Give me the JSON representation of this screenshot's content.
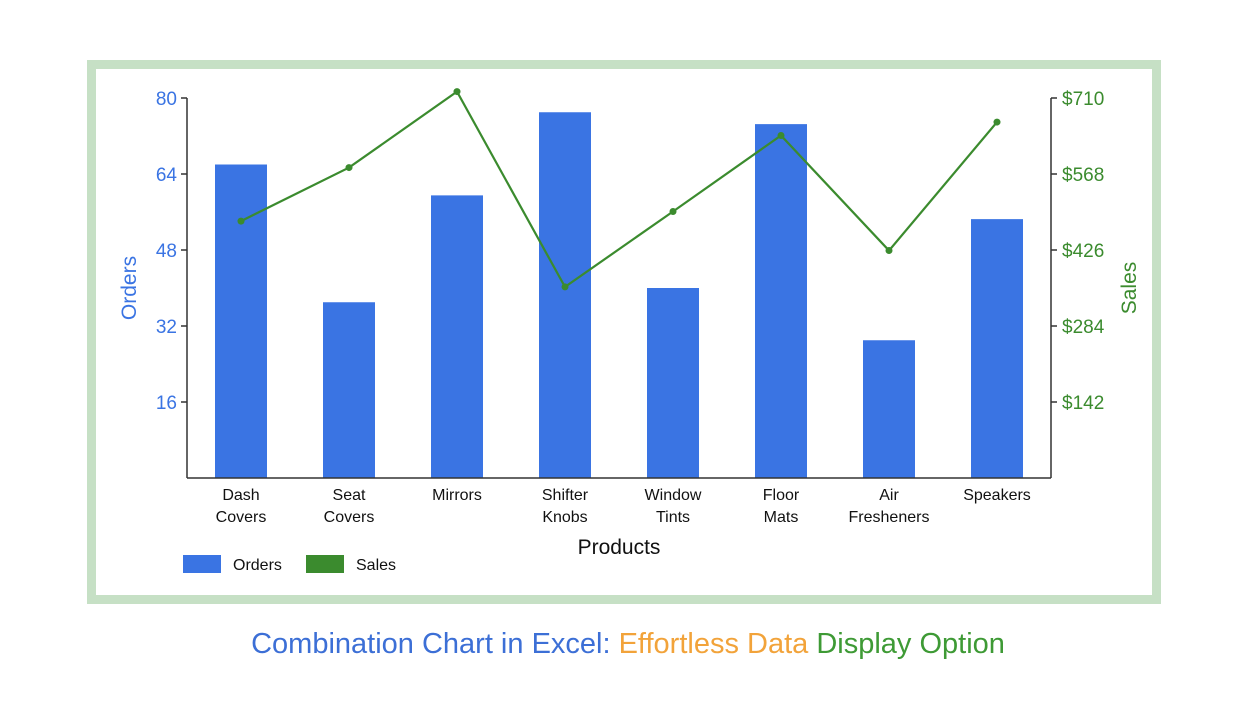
{
  "colors": {
    "orders": "#3a74e3",
    "sales": "#3b8b2e",
    "frame": "#c6e0c5",
    "axis": "#333333",
    "caption_blue": "#3c6fd6",
    "caption_orange": "#f2a33a",
    "caption_green": "#3e9a35"
  },
  "chart_data": {
    "type": "bar",
    "categories": [
      [
        "Dash",
        "Covers"
      ],
      [
        "Seat",
        "Covers"
      ],
      [
        "Mirrors"
      ],
      [
        "Shifter",
        "Knobs"
      ],
      [
        "Window",
        "Tints"
      ],
      [
        "Floor",
        "Mats"
      ],
      [
        "Air",
        "Fresheners"
      ],
      [
        "Speakers"
      ]
    ],
    "series": [
      {
        "name": "Orders",
        "type": "bar",
        "axis": "left",
        "values": [
          66,
          37,
          59.5,
          77,
          40,
          74.5,
          29,
          54.5
        ]
      },
      {
        "name": "Sales",
        "type": "line",
        "axis": "right",
        "values": [
          480,
          580,
          722,
          357,
          498,
          640,
          425,
          665
        ]
      }
    ],
    "xlabel": "Products",
    "ylabel_left": "Orders",
    "ylabel_right": "Sales",
    "ylim_left": [
      0,
      80
    ],
    "yticks_left": [
      16,
      32,
      48,
      64,
      80
    ],
    "ylim_right": [
      0,
      710
    ],
    "yticks_right": [
      "$142",
      "$284",
      "$426",
      "$568",
      "$710"
    ],
    "grid": false,
    "legend": {
      "position": "bottom-left",
      "entries": [
        "Orders",
        "Sales"
      ]
    }
  },
  "caption": {
    "part1": "Combination Chart in Excel: ",
    "part2": "Effortless Data ",
    "part3": "Display Option"
  }
}
